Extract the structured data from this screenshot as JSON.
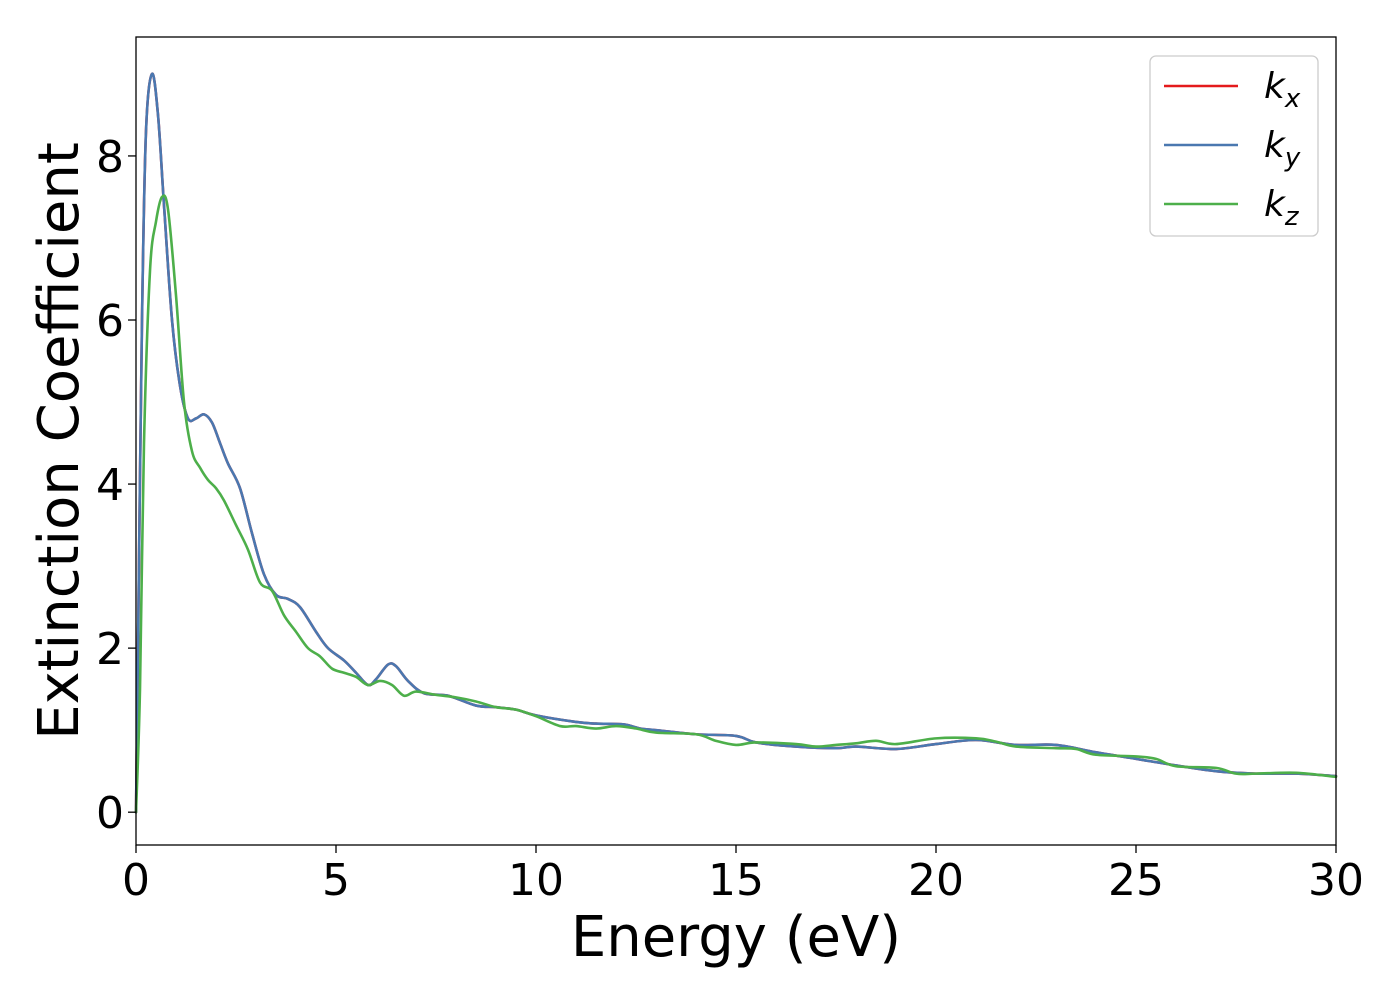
{
  "chart_data": {
    "type": "line",
    "xlabel": "Energy (eV)",
    "ylabel": "Extinction Coefficient",
    "xlim": [
      0,
      30
    ],
    "ylim": [
      -0.4,
      9.45
    ],
    "xticks": [
      0,
      5,
      10,
      15,
      20,
      25,
      30
    ],
    "yticks": [
      0,
      2,
      4,
      6,
      8
    ],
    "grid": false,
    "legend_position": "top-right",
    "series": [
      {
        "name": "k_x",
        "legend_base": "k",
        "legend_sub": "x",
        "color": "#e41a1c",
        "points": [
          [
            0,
            0
          ],
          [
            0.05,
            2.0
          ],
          [
            0.15,
            6.0
          ],
          [
            0.25,
            8.3
          ],
          [
            0.4,
            9.0
          ],
          [
            0.55,
            8.5
          ],
          [
            0.7,
            7.4
          ],
          [
            0.9,
            6.0
          ],
          [
            1.1,
            5.2
          ],
          [
            1.3,
            4.8
          ],
          [
            1.5,
            4.8
          ],
          [
            1.7,
            4.85
          ],
          [
            1.9,
            4.75
          ],
          [
            2.1,
            4.5
          ],
          [
            2.3,
            4.25
          ],
          [
            2.6,
            3.95
          ],
          [
            2.9,
            3.4
          ],
          [
            3.2,
            2.9
          ],
          [
            3.5,
            2.65
          ],
          [
            3.8,
            2.6
          ],
          [
            4.1,
            2.5
          ],
          [
            4.5,
            2.2
          ],
          [
            4.8,
            2.0
          ],
          [
            5.2,
            1.85
          ],
          [
            5.5,
            1.7
          ],
          [
            5.8,
            1.55
          ],
          [
            6.0,
            1.62
          ],
          [
            6.3,
            1.8
          ],
          [
            6.5,
            1.78
          ],
          [
            6.8,
            1.6
          ],
          [
            7.2,
            1.45
          ],
          [
            7.8,
            1.42
          ],
          [
            8.5,
            1.3
          ],
          [
            9.0,
            1.28
          ],
          [
            9.5,
            1.25
          ],
          [
            10.0,
            1.18
          ],
          [
            11.0,
            1.1
          ],
          [
            11.5,
            1.08
          ],
          [
            12.2,
            1.07
          ],
          [
            12.6,
            1.02
          ],
          [
            13.0,
            1.0
          ],
          [
            14.0,
            0.95
          ],
          [
            15.0,
            0.93
          ],
          [
            15.5,
            0.85
          ],
          [
            16.5,
            0.8
          ],
          [
            17.5,
            0.78
          ],
          [
            18.0,
            0.8
          ],
          [
            19.0,
            0.77
          ],
          [
            20.0,
            0.83
          ],
          [
            21.0,
            0.88
          ],
          [
            22.0,
            0.82
          ],
          [
            23.0,
            0.82
          ],
          [
            24.0,
            0.73
          ],
          [
            25.0,
            0.65
          ],
          [
            26.0,
            0.57
          ],
          [
            27.0,
            0.5
          ],
          [
            28.0,
            0.47
          ],
          [
            29.0,
            0.47
          ],
          [
            30.0,
            0.44
          ]
        ]
      },
      {
        "name": "k_y",
        "legend_base": "k",
        "legend_sub": "y",
        "color": "#4a78b0",
        "points": [
          [
            0,
            0
          ],
          [
            0.05,
            2.0
          ],
          [
            0.15,
            6.0
          ],
          [
            0.25,
            8.3
          ],
          [
            0.4,
            9.0
          ],
          [
            0.55,
            8.5
          ],
          [
            0.7,
            7.4
          ],
          [
            0.9,
            6.0
          ],
          [
            1.1,
            5.2
          ],
          [
            1.3,
            4.8
          ],
          [
            1.5,
            4.8
          ],
          [
            1.7,
            4.85
          ],
          [
            1.9,
            4.75
          ],
          [
            2.1,
            4.5
          ],
          [
            2.3,
            4.25
          ],
          [
            2.6,
            3.95
          ],
          [
            2.9,
            3.4
          ],
          [
            3.2,
            2.9
          ],
          [
            3.5,
            2.65
          ],
          [
            3.8,
            2.6
          ],
          [
            4.1,
            2.5
          ],
          [
            4.5,
            2.2
          ],
          [
            4.8,
            2.0
          ],
          [
            5.2,
            1.85
          ],
          [
            5.5,
            1.7
          ],
          [
            5.8,
            1.55
          ],
          [
            6.0,
            1.62
          ],
          [
            6.3,
            1.8
          ],
          [
            6.5,
            1.78
          ],
          [
            6.8,
            1.6
          ],
          [
            7.2,
            1.45
          ],
          [
            7.8,
            1.42
          ],
          [
            8.5,
            1.3
          ],
          [
            9.0,
            1.28
          ],
          [
            9.5,
            1.25
          ],
          [
            10.0,
            1.18
          ],
          [
            11.0,
            1.1
          ],
          [
            11.5,
            1.08
          ],
          [
            12.2,
            1.07
          ],
          [
            12.6,
            1.02
          ],
          [
            13.0,
            1.0
          ],
          [
            14.0,
            0.95
          ],
          [
            15.0,
            0.93
          ],
          [
            15.5,
            0.85
          ],
          [
            16.5,
            0.8
          ],
          [
            17.5,
            0.78
          ],
          [
            18.0,
            0.8
          ],
          [
            19.0,
            0.77
          ],
          [
            20.0,
            0.83
          ],
          [
            21.0,
            0.88
          ],
          [
            22.0,
            0.82
          ],
          [
            23.0,
            0.82
          ],
          [
            24.0,
            0.73
          ],
          [
            25.0,
            0.65
          ],
          [
            26.0,
            0.57
          ],
          [
            27.0,
            0.5
          ],
          [
            28.0,
            0.47
          ],
          [
            29.0,
            0.47
          ],
          [
            30.0,
            0.44
          ]
        ]
      },
      {
        "name": "k_z",
        "legend_base": "k",
        "legend_sub": "z",
        "color": "#4daf4a",
        "points": [
          [
            0,
            0
          ],
          [
            0.1,
            1.5
          ],
          [
            0.2,
            4.5
          ],
          [
            0.35,
            6.6
          ],
          [
            0.5,
            7.2
          ],
          [
            0.65,
            7.5
          ],
          [
            0.8,
            7.35
          ],
          [
            1.0,
            6.3
          ],
          [
            1.2,
            5.0
          ],
          [
            1.4,
            4.4
          ],
          [
            1.6,
            4.2
          ],
          [
            1.8,
            4.05
          ],
          [
            2.0,
            3.95
          ],
          [
            2.2,
            3.8
          ],
          [
            2.5,
            3.5
          ],
          [
            2.8,
            3.2
          ],
          [
            3.1,
            2.8
          ],
          [
            3.4,
            2.7
          ],
          [
            3.7,
            2.4
          ],
          [
            4.0,
            2.2
          ],
          [
            4.3,
            2.0
          ],
          [
            4.6,
            1.9
          ],
          [
            4.9,
            1.75
          ],
          [
            5.2,
            1.7
          ],
          [
            5.5,
            1.65
          ],
          [
            5.8,
            1.55
          ],
          [
            6.1,
            1.6
          ],
          [
            6.4,
            1.55
          ],
          [
            6.7,
            1.42
          ],
          [
            7.0,
            1.47
          ],
          [
            7.5,
            1.43
          ],
          [
            8.0,
            1.4
          ],
          [
            8.5,
            1.35
          ],
          [
            9.0,
            1.28
          ],
          [
            9.5,
            1.25
          ],
          [
            10.0,
            1.17
          ],
          [
            10.6,
            1.05
          ],
          [
            11.0,
            1.05
          ],
          [
            11.5,
            1.02
          ],
          [
            12.0,
            1.05
          ],
          [
            12.5,
            1.02
          ],
          [
            13.0,
            0.97
          ],
          [
            14.0,
            0.95
          ],
          [
            14.5,
            0.87
          ],
          [
            15.0,
            0.82
          ],
          [
            15.5,
            0.85
          ],
          [
            16.5,
            0.83
          ],
          [
            17.0,
            0.8
          ],
          [
            17.5,
            0.82
          ],
          [
            18.0,
            0.84
          ],
          [
            18.5,
            0.87
          ],
          [
            19.0,
            0.83
          ],
          [
            20.0,
            0.9
          ],
          [
            21.0,
            0.9
          ],
          [
            21.5,
            0.86
          ],
          [
            22.0,
            0.8
          ],
          [
            23.0,
            0.78
          ],
          [
            23.5,
            0.77
          ],
          [
            24.0,
            0.7
          ],
          [
            25.0,
            0.68
          ],
          [
            25.5,
            0.65
          ],
          [
            26.0,
            0.56
          ],
          [
            27.0,
            0.54
          ],
          [
            27.5,
            0.47
          ],
          [
            28.0,
            0.47
          ],
          [
            29.0,
            0.48
          ],
          [
            30.0,
            0.43
          ]
        ]
      }
    ]
  }
}
